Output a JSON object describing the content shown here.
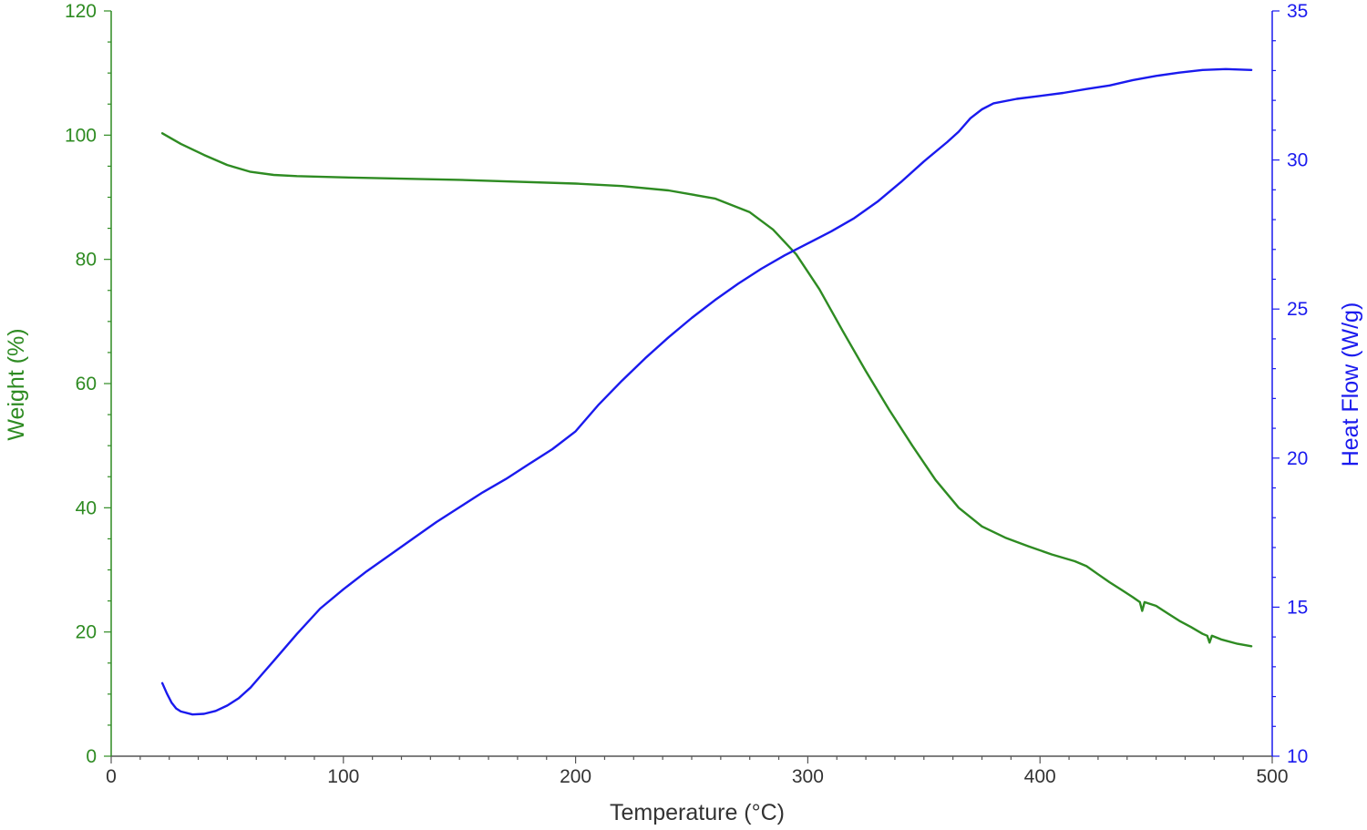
{
  "chart_data": {
    "type": "line",
    "title": "",
    "xlabel": "Temperature (°C)",
    "y_left_label": "Weight (%)",
    "y_right_label": "Heat Flow (W/g)",
    "xlim": [
      0,
      500
    ],
    "y_left_lim": [
      0,
      120
    ],
    "y_right_lim": [
      10,
      35
    ],
    "x_ticks": [
      "0",
      "100",
      "200",
      "300",
      "400",
      "500"
    ],
    "y_left_ticks": [
      "0",
      "20",
      "40",
      "60",
      "80",
      "100",
      "120"
    ],
    "y_right_ticks": [
      "10",
      "15",
      "20",
      "25",
      "30",
      "35"
    ],
    "grid": false,
    "legend": "none",
    "colors": {
      "weight": "#2e8b22",
      "heat_flow": "#1a1aee",
      "axis": "#555555"
    },
    "series": [
      {
        "axis": "left",
        "points": [
          [
            22,
            100.3
          ],
          [
            30,
            98.6
          ],
          [
            40,
            96.8
          ],
          [
            50,
            95.2
          ],
          [
            60,
            94.1
          ],
          [
            70,
            93.6
          ],
          [
            80,
            93.4
          ],
          [
            100,
            93.2
          ],
          [
            150,
            92.8
          ],
          [
            200,
            92.2
          ],
          [
            220,
            91.8
          ],
          [
            240,
            91.1
          ],
          [
            260,
            89.8
          ],
          [
            275,
            87.6
          ],
          [
            285,
            84.8
          ],
          [
            295,
            80.8
          ],
          [
            305,
            75.2
          ],
          [
            315,
            68.5
          ],
          [
            325,
            62.0
          ],
          [
            335,
            55.8
          ],
          [
            345,
            50.0
          ],
          [
            355,
            44.5
          ],
          [
            365,
            40.0
          ],
          [
            375,
            37.0
          ],
          [
            385,
            35.2
          ],
          [
            395,
            33.8
          ],
          [
            405,
            32.5
          ],
          [
            415,
            31.4
          ],
          [
            420,
            30.6
          ],
          [
            425,
            29.3
          ],
          [
            430,
            28.0
          ],
          [
            435,
            26.8
          ],
          [
            440,
            25.6
          ],
          [
            443,
            24.8
          ],
          [
            444,
            23.4
          ],
          [
            445,
            24.8
          ],
          [
            450,
            24.2
          ],
          [
            455,
            23.0
          ],
          [
            460,
            21.8
          ],
          [
            465,
            20.8
          ],
          [
            470,
            19.7
          ],
          [
            472,
            19.4
          ],
          [
            473,
            18.3
          ],
          [
            474,
            19.4
          ],
          [
            478,
            18.8
          ],
          [
            485,
            18.1
          ],
          [
            491,
            17.7
          ]
        ]
      },
      {
        "axis": "right",
        "points": [
          [
            22,
            12.45
          ],
          [
            24,
            12.1
          ],
          [
            26,
            11.8
          ],
          [
            28,
            11.6
          ],
          [
            30,
            11.5
          ],
          [
            35,
            11.4
          ],
          [
            40,
            11.42
          ],
          [
            45,
            11.52
          ],
          [
            50,
            11.7
          ],
          [
            55,
            11.95
          ],
          [
            60,
            12.3
          ],
          [
            65,
            12.75
          ],
          [
            70,
            13.2
          ],
          [
            80,
            14.1
          ],
          [
            90,
            14.95
          ],
          [
            100,
            15.6
          ],
          [
            110,
            16.2
          ],
          [
            120,
            16.75
          ],
          [
            130,
            17.3
          ],
          [
            140,
            17.85
          ],
          [
            150,
            18.35
          ],
          [
            160,
            18.85
          ],
          [
            170,
            19.3
          ],
          [
            180,
            19.8
          ],
          [
            190,
            20.3
          ],
          [
            200,
            20.9
          ],
          [
            210,
            21.8
          ],
          [
            220,
            22.6
          ],
          [
            230,
            23.35
          ],
          [
            240,
            24.05
          ],
          [
            250,
            24.7
          ],
          [
            260,
            25.3
          ],
          [
            270,
            25.85
          ],
          [
            280,
            26.35
          ],
          [
            290,
            26.8
          ],
          [
            300,
            27.2
          ],
          [
            310,
            27.6
          ],
          [
            320,
            28.05
          ],
          [
            330,
            28.6
          ],
          [
            340,
            29.25
          ],
          [
            350,
            29.95
          ],
          [
            360,
            30.6
          ],
          [
            365,
            30.95
          ],
          [
            370,
            31.4
          ],
          [
            375,
            31.7
          ],
          [
            380,
            31.9
          ],
          [
            390,
            32.05
          ],
          [
            400,
            32.15
          ],
          [
            410,
            32.25
          ],
          [
            420,
            32.38
          ],
          [
            430,
            32.5
          ],
          [
            440,
            32.68
          ],
          [
            450,
            32.82
          ],
          [
            460,
            32.93
          ],
          [
            470,
            33.02
          ],
          [
            480,
            33.05
          ],
          [
            491,
            33.02
          ]
        ]
      }
    ]
  }
}
